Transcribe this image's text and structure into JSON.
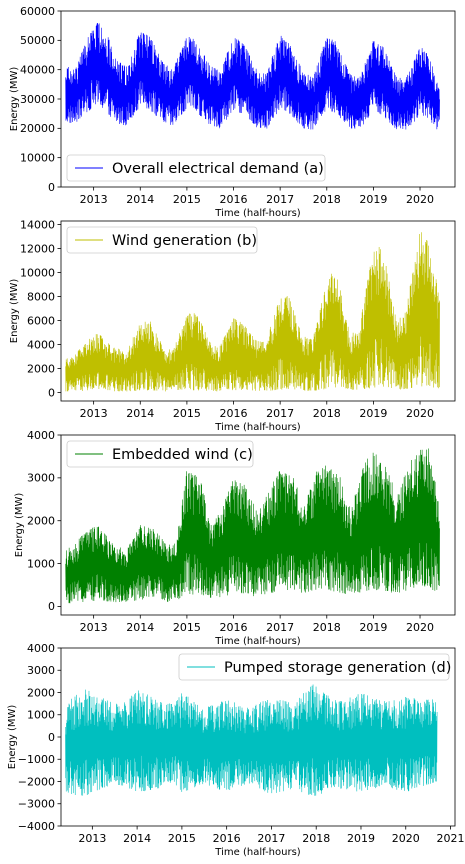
{
  "chart_data": [
    {
      "type": "line",
      "panel_label": "(a)",
      "xlabel": "Time (half-hours)",
      "ylabel": "Energy (MW)",
      "x_ticks": [
        "2013",
        "2014",
        "2015",
        "2016",
        "2017",
        "2018",
        "2019",
        "2020"
      ],
      "x_range": [
        2012.3,
        2020.75
      ],
      "ylim": [
        0,
        60000
      ],
      "y_ticks": [
        0,
        10000,
        20000,
        30000,
        40000,
        50000,
        60000
      ],
      "y_tick_labels": [
        "0",
        "10000",
        "20000",
        "30000",
        "40000",
        "50000",
        "60000"
      ],
      "legend_location": "lower-left",
      "series": [
        {
          "name": "Overall electrical demand (a)",
          "color": "#0000ff",
          "x_start": 2012.4,
          "x_end": 2020.42,
          "envelope": {
            "x": [
              2012.4,
              2012.6,
              2012.9,
              2013.0,
              2013.2,
              2013.5,
              2013.7,
              2014.0,
              2014.2,
              2014.5,
              2014.7,
              2015.0,
              2015.2,
              2015.5,
              2015.7,
              2016.0,
              2016.2,
              2016.5,
              2016.7,
              2017.0,
              2017.2,
              2017.5,
              2017.7,
              2018.0,
              2018.2,
              2018.5,
              2018.7,
              2019.0,
              2019.2,
              2019.5,
              2019.7,
              2020.0,
              2020.2,
              2020.42
            ],
            "upper": [
              41500,
              40000,
              52000,
              56500,
              55500,
              43500,
              41000,
              53000,
              51500,
              42500,
              40000,
              51500,
              50000,
              41500,
              39500,
              51000,
              49500,
              40000,
              38500,
              52000,
              49000,
              39000,
              37500,
              51500,
              49500,
              38500,
              37000,
              50000,
              48000,
              37500,
              37000,
              48000,
              45000,
              33000
            ],
            "lower": [
              22000,
              21500,
              26000,
              27500,
              26500,
              21500,
              21000,
              27500,
              26500,
              21500,
              20500,
              26500,
              25500,
              21000,
              20000,
              26000,
              25000,
              20000,
              19500,
              26500,
              25000,
              20000,
              19500,
              26500,
              25000,
              20000,
              19500,
              26000,
              24500,
              19500,
              19000,
              24500,
              23000,
              18500
            ]
          }
        }
      ]
    },
    {
      "type": "line",
      "panel_label": "(b)",
      "xlabel": "Time (half-hours)",
      "ylabel": "Energy (MW)",
      "x_ticks": [
        "2013",
        "2014",
        "2015",
        "2016",
        "2017",
        "2018",
        "2019",
        "2020"
      ],
      "x_range": [
        2012.3,
        2020.75
      ],
      "ylim": [
        -700,
        14300
      ],
      "y_ticks": [
        0,
        2000,
        4000,
        6000,
        8000,
        10000,
        12000,
        14000
      ],
      "y_tick_labels": [
        "0",
        "2000",
        "4000",
        "6000",
        "8000",
        "10000",
        "12000",
        "14000"
      ],
      "legend_location": "top-left",
      "series": [
        {
          "name": "Wind generation (b)",
          "color": "#bfbf00",
          "x_start": 2012.4,
          "x_end": 2020.42,
          "envelope": {
            "x": [
              2012.4,
              2012.6,
              2012.9,
              2013.1,
              2013.4,
              2013.7,
              2014.0,
              2014.2,
              2014.5,
              2014.7,
              2015.0,
              2015.2,
              2015.5,
              2015.7,
              2016.0,
              2016.2,
              2016.5,
              2016.7,
              2017.0,
              2017.2,
              2017.5,
              2017.7,
              2018.0,
              2018.2,
              2018.5,
              2018.7,
              2019.0,
              2019.2,
              2019.5,
              2019.7,
              2020.0,
              2020.2,
              2020.42
            ],
            "upper": [
              2800,
              3200,
              4500,
              5000,
              3800,
              3500,
              5800,
              6100,
              3800,
              3500,
              6500,
              6800,
              4200,
              3800,
              6200,
              5800,
              4300,
              4300,
              8000,
              8100,
              4700,
              4500,
              9300,
              10500,
              4700,
              5600,
              12000,
              12300,
              5800,
              7000,
              13600,
              12500,
              8000
            ],
            "lower": [
              100,
              100,
              150,
              150,
              100,
              100,
              150,
              200,
              100,
              100,
              200,
              200,
              100,
              100,
              200,
              200,
              100,
              100,
              200,
              300,
              150,
              150,
              300,
              400,
              200,
              200,
              400,
              500,
              200,
              300,
              500,
              500,
              300
            ]
          }
        }
      ]
    },
    {
      "type": "line",
      "panel_label": "(c)",
      "xlabel": "Time (half-hours)",
      "ylabel": "Energy (MW)",
      "x_ticks": [
        "2013",
        "2014",
        "2015",
        "2016",
        "2017",
        "2018",
        "2019",
        "2020"
      ],
      "x_range": [
        2012.3,
        2020.75
      ],
      "ylim": [
        -200,
        4000
      ],
      "y_ticks": [
        0,
        1000,
        2000,
        3000,
        4000
      ],
      "y_tick_labels": [
        "0",
        "1000",
        "2000",
        "3000",
        "4000"
      ],
      "legend_location": "top-left",
      "series": [
        {
          "name": "Embedded wind (c)",
          "color": "#008000",
          "x_start": 2012.4,
          "x_end": 2020.42,
          "envelope": {
            "x": [
              2012.4,
              2012.6,
              2012.9,
              2013.1,
              2013.4,
              2013.7,
              2014.0,
              2014.3,
              2014.6,
              2014.8,
              2015.0,
              2015.3,
              2015.5,
              2015.7,
              2016.0,
              2016.3,
              2016.5,
              2016.8,
              2017.0,
              2017.3,
              2017.5,
              2017.8,
              2018.0,
              2018.3,
              2018.5,
              2018.8,
              2019.0,
              2019.3,
              2019.5,
              2019.8,
              2020.0,
              2020.2,
              2020.42
            ],
            "upper": [
              1300,
              1500,
              1800,
              1900,
              1500,
              1300,
              1900,
              1800,
              1400,
              1700,
              3200,
              3000,
              1900,
              2200,
              3000,
              2800,
              2200,
              2800,
              3200,
              3000,
              2300,
              3200,
              3300,
              3000,
              2300,
              3300,
              3700,
              3200,
              2600,
              3400,
              3650,
              3700,
              2300
            ],
            "lower": [
              50,
              100,
              100,
              150,
              100,
              100,
              150,
              200,
              100,
              150,
              300,
              250,
              200,
              200,
              300,
              300,
              200,
              300,
              400,
              350,
              300,
              400,
              400,
              300,
              250,
              350,
              400,
              300,
              300,
              400,
              500,
              400,
              300
            ]
          }
        }
      ]
    },
    {
      "type": "line",
      "panel_label": "(d)",
      "xlabel": "Time (half-hours)",
      "ylabel": "Energy (MW)",
      "x_ticks": [
        "2013",
        "2014",
        "2015",
        "2016",
        "2017",
        "2018",
        "2019",
        "2020",
        "2021"
      ],
      "x_range": [
        2012.3,
        2021.1
      ],
      "ylim": [
        -4000,
        4000
      ],
      "y_ticks": [
        -4000,
        -3000,
        -2000,
        -1000,
        0,
        1000,
        2000,
        3000,
        4000
      ],
      "y_tick_labels": [
        "−4000",
        "−3000",
        "−2000",
        "−1000",
        "0",
        "1000",
        "2000",
        "3000",
        "4000"
      ],
      "legend_location": "top-right",
      "series": [
        {
          "name": "Pumped storage generation (d)",
          "color": "#00bfbf",
          "x_start": 2012.4,
          "x_end": 2020.7,
          "envelope": {
            "x": [
              2012.4,
              2012.8,
              2013.0,
              2013.5,
              2013.8,
              2014.0,
              2014.5,
              2014.8,
              2015.0,
              2015.5,
              2016.0,
              2016.5,
              2017.0,
              2017.5,
              2017.9,
              2018.2,
              2018.5,
              2019.0,
              2019.5,
              2020.0,
              2020.4,
              2020.7
            ],
            "upper": [
              1500,
              2200,
              2000,
              1500,
              1600,
              2300,
              1600,
              1500,
              2000,
              1300,
              1700,
              1300,
              1800,
              1500,
              2400,
              2000,
              1600,
              2000,
              1600,
              1800,
              1700,
              1700
            ],
            "lower": [
              -2500,
              -2700,
              -2500,
              -2100,
              -2300,
              -2500,
              -2300,
              -2000,
              -2500,
              -2100,
              -2500,
              -2100,
              -2600,
              -2300,
              -2700,
              -2500,
              -2300,
              -2500,
              -2200,
              -2500,
              -2200,
              -2000
            ]
          }
        }
      ]
    }
  ]
}
